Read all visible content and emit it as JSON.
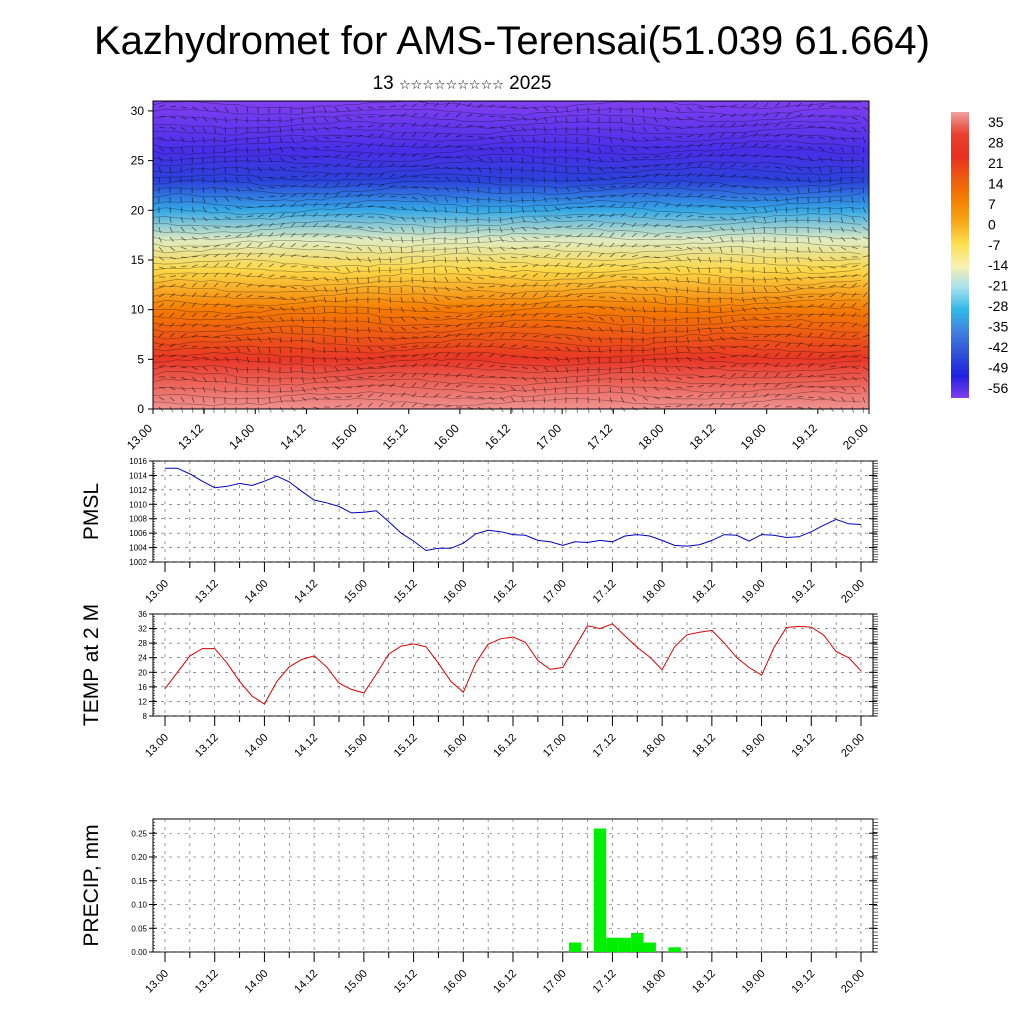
{
  "title": "Kazhydromet for AMS-Terensai(51.039 61.664)",
  "subtitle": {
    "day": "13",
    "month_glyphs": "☆☆☆☆☆☆☆☆☆",
    "year": "2025"
  },
  "chart_data": [
    {
      "id": "upper-air",
      "type": "heatmap",
      "title": "",
      "xlabel": "",
      "ylabel": "",
      "x_ticks": [
        "13.00",
        "13.12",
        "14.00",
        "14.12",
        "15.00",
        "15.12",
        "16.00",
        "16.12",
        "17.00",
        "17.12",
        "18.00",
        "18.12",
        "19.00",
        "19.12",
        "20.00"
      ],
      "y_ticks": [
        0,
        5,
        10,
        15,
        20,
        25,
        30
      ],
      "ylim": [
        0,
        31
      ],
      "colorbar_labels": [
        "35",
        "28",
        "21",
        "14",
        "7",
        "0",
        "-7",
        "-14",
        "-21",
        "-28",
        "-35",
        "-42",
        "-49",
        "-56"
      ],
      "colorbar_colors": [
        "#f0a0a0",
        "#e84030",
        "#e83020",
        "#ee5a10",
        "#f58000",
        "#f8a818",
        "#fde050",
        "#f8f0b0",
        "#a6e0f0",
        "#30b8e8",
        "#4080e0",
        "#3050d8",
        "#2020e0",
        "#8040f0"
      ],
      "temperature_bands": [
        {
          "height_km": 0,
          "temp": 34
        },
        {
          "height_km": 5,
          "temp": 24
        },
        {
          "height_km": 10,
          "temp": 8
        },
        {
          "height_km": 14,
          "temp": -6
        },
        {
          "height_km": 17,
          "temp": -16
        },
        {
          "height_km": 20,
          "temp": -30
        },
        {
          "height_km": 23,
          "temp": -44
        },
        {
          "height_km": 26,
          "temp": -52
        },
        {
          "height_km": 31,
          "temp": -58
        }
      ]
    },
    {
      "id": "pmsl",
      "type": "line",
      "ylabel": "PMSL",
      "ylim": [
        1002,
        1016
      ],
      "y_ticks": [
        1002,
        1004,
        1006,
        1008,
        1010,
        1012,
        1014,
        1016
      ],
      "x_ticks": [
        "13.00",
        "13.12",
        "14.00",
        "14.12",
        "15.00",
        "15.12",
        "16.00",
        "16.12",
        "17.00",
        "17.12",
        "18.00",
        "18.12",
        "19.00",
        "19.12",
        "20.00"
      ],
      "color": "#0000cc",
      "x": [
        0,
        3,
        6,
        9,
        12,
        15,
        18,
        21,
        24,
        27,
        30,
        33,
        36,
        39,
        42,
        45,
        48,
        51,
        54,
        57,
        60,
        63,
        66,
        69,
        72,
        75,
        78,
        81,
        84,
        87,
        90,
        93,
        96,
        99,
        102,
        105,
        108,
        111,
        114,
        117,
        120,
        123,
        126,
        129,
        132,
        135,
        138,
        141,
        144,
        147,
        150,
        153,
        156,
        159,
        162,
        165,
        168
      ],
      "values": [
        1015,
        1015,
        1014.2,
        1013.2,
        1012.3,
        1012.5,
        1012.9,
        1012.6,
        1013.2,
        1013.9,
        1013.1,
        1011.8,
        1010.6,
        1010.2,
        1009.7,
        1008.8,
        1008.9,
        1009.1,
        1007.6,
        1006,
        1004.9,
        1003.6,
        1003.9,
        1003.9,
        1004.6,
        1005.9,
        1006.4,
        1006.2,
        1005.8,
        1005.7,
        1005,
        1004.8,
        1004.3,
        1004.8,
        1004.7,
        1005,
        1004.8,
        1005.6,
        1005.8,
        1005.6,
        1005,
        1004.3,
        1004.2,
        1004.4,
        1005,
        1005.8,
        1005.7,
        1004.9,
        1005.8,
        1005.7,
        1005.4,
        1005.5,
        1006.2,
        1007.1,
        1007.9,
        1007.3,
        1007.2
      ]
    },
    {
      "id": "temp-2m",
      "type": "line",
      "ylabel": "TEMP at 2 M",
      "ylim": [
        8,
        36
      ],
      "y_ticks": [
        8,
        12,
        16,
        20,
        24,
        28,
        32,
        36
      ],
      "x_ticks": [
        "13.00",
        "13.12",
        "14.00",
        "14.12",
        "15.00",
        "15.12",
        "16.00",
        "16.12",
        "17.00",
        "17.12",
        "18.00",
        "18.12",
        "19.00",
        "19.12",
        "20.00"
      ],
      "color": "#dd0000",
      "x": [
        0,
        3,
        6,
        9,
        12,
        15,
        18,
        21,
        24,
        27,
        30,
        33,
        36,
        39,
        42,
        45,
        48,
        51,
        54,
        57,
        60,
        63,
        66,
        69,
        72,
        75,
        78,
        81,
        84,
        87,
        90,
        93,
        96,
        99,
        102,
        105,
        108,
        111,
        114,
        117,
        120,
        123,
        126,
        129,
        132,
        135,
        138,
        141,
        144,
        147,
        150,
        153,
        156,
        159,
        162,
        165,
        168
      ],
      "values": [
        15.5,
        20,
        24.5,
        26.5,
        26.5,
        22.5,
        17.5,
        13.5,
        11.3,
        17.5,
        21.5,
        23.5,
        24.5,
        21.5,
        17,
        15.3,
        14.3,
        19.5,
        25,
        27.2,
        27.8,
        27,
        22.5,
        17.5,
        14.5,
        22.5,
        27.7,
        29.2,
        29.7,
        28.2,
        23.2,
        20.8,
        21.3,
        27,
        32.8,
        32,
        33.3,
        30,
        26.8,
        24.2,
        20.7,
        27,
        30.3,
        31,
        31.5,
        28,
        24,
        21.3,
        19.2,
        26.8,
        32.3,
        32.6,
        32.4,
        30.2,
        25.7,
        24,
        20.4
      ]
    },
    {
      "id": "precip",
      "type": "bar",
      "ylabel": "PRECIP, mm",
      "ylim": [
        0,
        0.28
      ],
      "y_ticks": [
        "0.00",
        "0.05",
        "0.10",
        "0.15",
        "0.20",
        "0.25"
      ],
      "x_ticks": [
        "13.00",
        "13.12",
        "14.00",
        "14.12",
        "15.00",
        "15.12",
        "16.00",
        "16.12",
        "17.00",
        "17.12",
        "18.00",
        "18.12",
        "19.00",
        "19.12",
        "20.00"
      ],
      "color": "#00ee00",
      "x": [
        99,
        105,
        108,
        111,
        114,
        117,
        123
      ],
      "values": [
        0.02,
        0.26,
        0.03,
        0.03,
        0.04,
        0.02,
        0.01
      ]
    }
  ],
  "colors": {
    "pmsl_line": "#0000cc",
    "temp_line": "#dd0000",
    "precip_bars": "#00ee00",
    "grid": "#555555"
  }
}
